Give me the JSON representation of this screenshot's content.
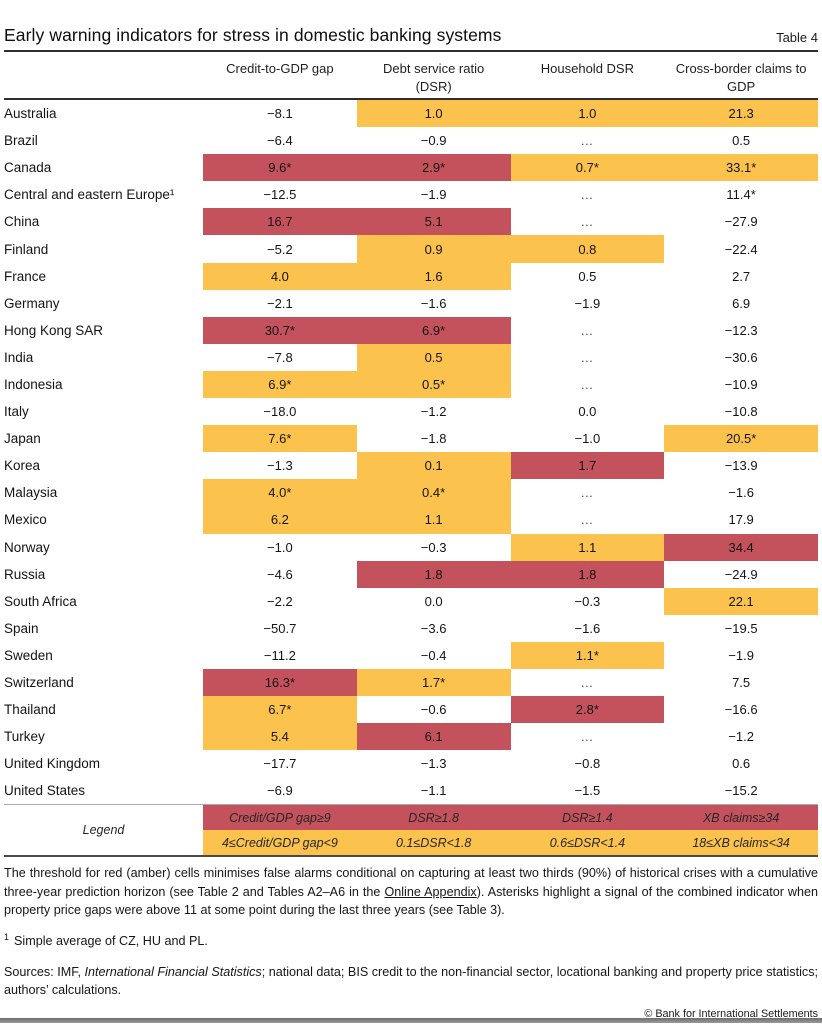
{
  "title": "Early warning indicators for stress in domestic banking systems",
  "table_number": "Table 4",
  "colors": {
    "red": "#C4525D",
    "amber": "#FBC34D"
  },
  "table": {
    "columns": [
      "Credit-to-GDP gap",
      "Debt service ratio (DSR)",
      "Household DSR",
      "Cross-border claims to GDP"
    ],
    "rows": [
      {
        "country": "Australia",
        "values": [
          "−8.1",
          "1.0",
          "1.0",
          "21.3"
        ],
        "fills": [
          "none",
          "amber",
          "amber",
          "amber"
        ]
      },
      {
        "country": "Brazil",
        "values": [
          "−6.4",
          "−0.9",
          "…",
          "0.5"
        ],
        "fills": [
          "none",
          "none",
          "none",
          "none"
        ]
      },
      {
        "country": "Canada",
        "values": [
          "9.6*",
          "2.9*",
          "0.7*",
          "33.1*"
        ],
        "fills": [
          "red",
          "red",
          "amber",
          "amber"
        ]
      },
      {
        "country": "Central and eastern Europe¹",
        "values": [
          "−12.5",
          "−1.9",
          "…",
          "11.4*"
        ],
        "fills": [
          "none",
          "none",
          "none",
          "none"
        ]
      },
      {
        "country": "China",
        "values": [
          "16.7",
          "5.1",
          "…",
          "−27.9"
        ],
        "fills": [
          "red",
          "red",
          "none",
          "none"
        ]
      },
      {
        "country": "Finland",
        "values": [
          "−5.2",
          "0.9",
          "0.8",
          "−22.4"
        ],
        "fills": [
          "none",
          "amber",
          "amber",
          "none"
        ]
      },
      {
        "country": "France",
        "values": [
          "4.0",
          "1.6",
          "0.5",
          "2.7"
        ],
        "fills": [
          "amber",
          "amber",
          "none",
          "none"
        ]
      },
      {
        "country": "Germany",
        "values": [
          "−2.1",
          "−1.6",
          "−1.9",
          "6.9"
        ],
        "fills": [
          "none",
          "none",
          "none",
          "none"
        ]
      },
      {
        "country": "Hong Kong SAR",
        "values": [
          "30.7*",
          "6.9*",
          "…",
          "−12.3"
        ],
        "fills": [
          "red",
          "red",
          "none",
          "none"
        ]
      },
      {
        "country": "India",
        "values": [
          "−7.8",
          "0.5",
          "…",
          "−30.6"
        ],
        "fills": [
          "none",
          "amber",
          "none",
          "none"
        ]
      },
      {
        "country": "Indonesia",
        "values": [
          "6.9*",
          "0.5*",
          "…",
          "−10.9"
        ],
        "fills": [
          "amber",
          "amber",
          "none",
          "none"
        ]
      },
      {
        "country": "Italy",
        "values": [
          "−18.0",
          "−1.2",
          "0.0",
          "−10.8"
        ],
        "fills": [
          "none",
          "none",
          "none",
          "none"
        ]
      },
      {
        "country": "Japan",
        "values": [
          "7.6*",
          "−1.8",
          "−1.0",
          "20.5*"
        ],
        "fills": [
          "amber",
          "none",
          "none",
          "amber"
        ]
      },
      {
        "country": "Korea",
        "values": [
          "−1.3",
          "0.1",
          "1.7",
          "−13.9"
        ],
        "fills": [
          "none",
          "amber",
          "red",
          "none"
        ]
      },
      {
        "country": "Malaysia",
        "values": [
          "4.0*",
          "0.4*",
          "…",
          "−1.6"
        ],
        "fills": [
          "amber",
          "amber",
          "none",
          "none"
        ]
      },
      {
        "country": "Mexico",
        "values": [
          "6.2",
          "1.1",
          "…",
          "17.9"
        ],
        "fills": [
          "amber",
          "amber",
          "none",
          "none"
        ]
      },
      {
        "country": "Norway",
        "values": [
          "−1.0",
          "−0.3",
          "1.1",
          "34.4"
        ],
        "fills": [
          "none",
          "none",
          "amber",
          "red"
        ]
      },
      {
        "country": "Russia",
        "values": [
          "−4.6",
          "1.8",
          "1.8",
          "−24.9"
        ],
        "fills": [
          "none",
          "red",
          "red",
          "none"
        ]
      },
      {
        "country": "South Africa",
        "values": [
          "−2.2",
          "0.0",
          "−0.3",
          "22.1"
        ],
        "fills": [
          "none",
          "none",
          "none",
          "amber"
        ]
      },
      {
        "country": "Spain",
        "values": [
          "−50.7",
          "−3.6",
          "−1.6",
          "−19.5"
        ],
        "fills": [
          "none",
          "none",
          "none",
          "none"
        ]
      },
      {
        "country": "Sweden",
        "values": [
          "−11.2",
          "−0.4",
          "1.1*",
          "−1.9"
        ],
        "fills": [
          "none",
          "none",
          "amber",
          "none"
        ]
      },
      {
        "country": "Switzerland",
        "values": [
          "16.3*",
          "1.7*",
          "…",
          "7.5"
        ],
        "fills": [
          "red",
          "amber",
          "none",
          "none"
        ]
      },
      {
        "country": "Thailand",
        "values": [
          "6.7*",
          "−0.6",
          "2.8*",
          "−16.6"
        ],
        "fills": [
          "amber",
          "none",
          "red",
          "none"
        ]
      },
      {
        "country": "Turkey",
        "values": [
          "5.4",
          "6.1",
          "…",
          "−1.2"
        ],
        "fills": [
          "amber",
          "red",
          "none",
          "none"
        ]
      },
      {
        "country": "United Kingdom",
        "values": [
          "−17.7",
          "−1.3",
          "−0.8",
          "0.6"
        ],
        "fills": [
          "none",
          "none",
          "none",
          "none"
        ]
      },
      {
        "country": "United States",
        "values": [
          "−6.9",
          "−1.1",
          "−1.5",
          "−15.2"
        ],
        "fills": [
          "none",
          "none",
          "none",
          "none"
        ]
      }
    ]
  },
  "legend": {
    "label": "Legend",
    "red": [
      "Credit/GDP gap≥9",
      "DSR≥1.8",
      "DSR≥1.4",
      "XB claims≥34"
    ],
    "amber": [
      "4≤Credit/GDP gap<9",
      "0.1≤DSR<1.8",
      "0.6≤DSR<1.4",
      "18≤XB claims<34"
    ]
  },
  "notes": {
    "threshold_pre": "The threshold for red (amber) cells minimises false alarms conditional on capturing at least two thirds (90%) of historical crises with a cumulative three-year prediction horizon (see Table 2 and Tables A2–A6 in the ",
    "online_appendix": "Online Appendix",
    "threshold_post": "). Asterisks highlight a signal of the combined indicator when property price gaps were above 11 at some point during the last three years (see Table 3).",
    "footnote1_marker": "1",
    "footnote1_text": "Simple average of CZ, HU and PL.",
    "sources_pre": "Sources: IMF, ",
    "sources_italic": "International Financial Statistics",
    "sources_post": "; national data; BIS credit to the non-financial sector, locational banking and property price statistics; authors’ calculations.",
    "copyright": "© Bank for International Settlements"
  }
}
